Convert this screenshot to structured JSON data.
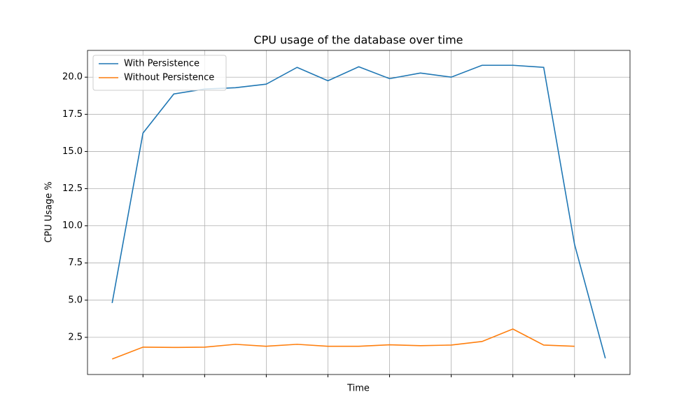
{
  "chart_data": {
    "type": "line",
    "title": "CPU usage of the database over time",
    "xlabel": "Time",
    "ylabel": "CPU Usage %",
    "x": [
      0,
      1,
      2,
      3,
      4,
      5,
      6,
      7,
      8,
      9,
      10,
      11,
      12,
      13,
      14,
      15,
      16
    ],
    "series": [
      {
        "name": "With Persistence",
        "color": "#1f77b4",
        "values": [
          4.81,
          16.24,
          18.87,
          19.2,
          19.29,
          19.53,
          20.66,
          19.76,
          20.7,
          19.9,
          20.28,
          20.0,
          20.8,
          20.8,
          20.66,
          8.76,
          1.09
        ]
      },
      {
        "name": "Without Persistence",
        "color": "#ff7f0e",
        "values": [
          1.04,
          1.84,
          1.82,
          1.84,
          2.03,
          1.9,
          2.03,
          1.9,
          1.9,
          2.0,
          1.94,
          1.98,
          2.22,
          3.06,
          1.98,
          1.9,
          null
        ]
      }
    ],
    "xlim": [
      -0.8,
      16.8
    ],
    "xticks": [
      1,
      3,
      5,
      7,
      9,
      11,
      13,
      15
    ],
    "ylim": [
      0.0,
      21.8
    ],
    "yticks": [
      {
        "value": 2.5,
        "label": "2.5"
      },
      {
        "value": 5,
        "label": "5.0"
      },
      {
        "value": 7.5,
        "label": "7.5"
      },
      {
        "value": 10,
        "label": "10.0"
      },
      {
        "value": 12.5,
        "label": "12.5"
      },
      {
        "value": 15,
        "label": "15.0"
      },
      {
        "value": 17.5,
        "label": "17.5"
      },
      {
        "value": 20,
        "label": "20.0"
      }
    ],
    "grid": true,
    "legend": "upper left"
  }
}
